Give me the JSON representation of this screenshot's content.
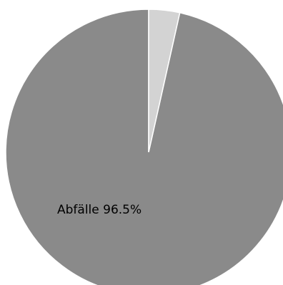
{
  "chart_data": {
    "type": "pie",
    "slices": [
      {
        "label": "Abfälle 96.5%",
        "value": 96.5,
        "color": "#8a8a8a"
      },
      {
        "label": "",
        "value": 3.5,
        "color": "#d3d3d3"
      }
    ]
  }
}
